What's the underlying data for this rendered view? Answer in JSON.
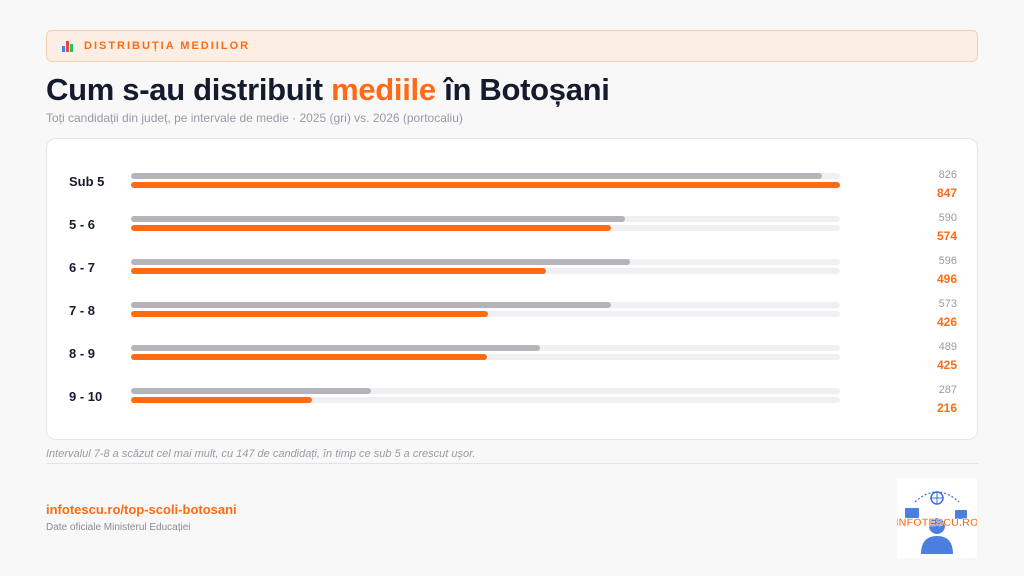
{
  "header": {
    "tag": "DISTRIBUȚIA MEDIILOR",
    "tag_icon": "bar-chart-icon",
    "title_before": "Cum s-au distribuit ",
    "title_accent": "mediile",
    "title_after": " în Botoșani",
    "subtitle": "Toți candidații din județ, pe intervale de medie · 2025 (gri) vs. 2026 (portocaliu)"
  },
  "colors": {
    "accent": "#ff6a13",
    "grey_bar": "#b4b4ba",
    "track": "#f0f0f3",
    "title": "#141b2d"
  },
  "chart_data": {
    "type": "bar",
    "orientation": "horizontal",
    "categories": [
      "Sub 5",
      "5 - 6",
      "6 - 7",
      "7 - 8",
      "8 - 9",
      "9 - 10"
    ],
    "series": [
      {
        "name": "2025",
        "values": [
          826,
          590,
          596,
          573,
          489,
          287
        ],
        "color": "#b4b4ba"
      },
      {
        "name": "2026",
        "values": [
          847,
          574,
          496,
          426,
          425,
          216
        ],
        "color": "#ff6a13"
      }
    ],
    "xlim": [
      0,
      847
    ],
    "grid": false
  },
  "note": "Intervalul 7-8 a scăzut cel mai mult, cu 147 de candidați, în timp ce sub 5 a crescut ușor.",
  "footer": {
    "link": "infotescu.ro/top-scoli-botosani",
    "source": "Date oficiale Ministerul Educației",
    "logo_text": "INFOTESCU.RO",
    "logo_icon": "infotescu-logo-icon"
  }
}
